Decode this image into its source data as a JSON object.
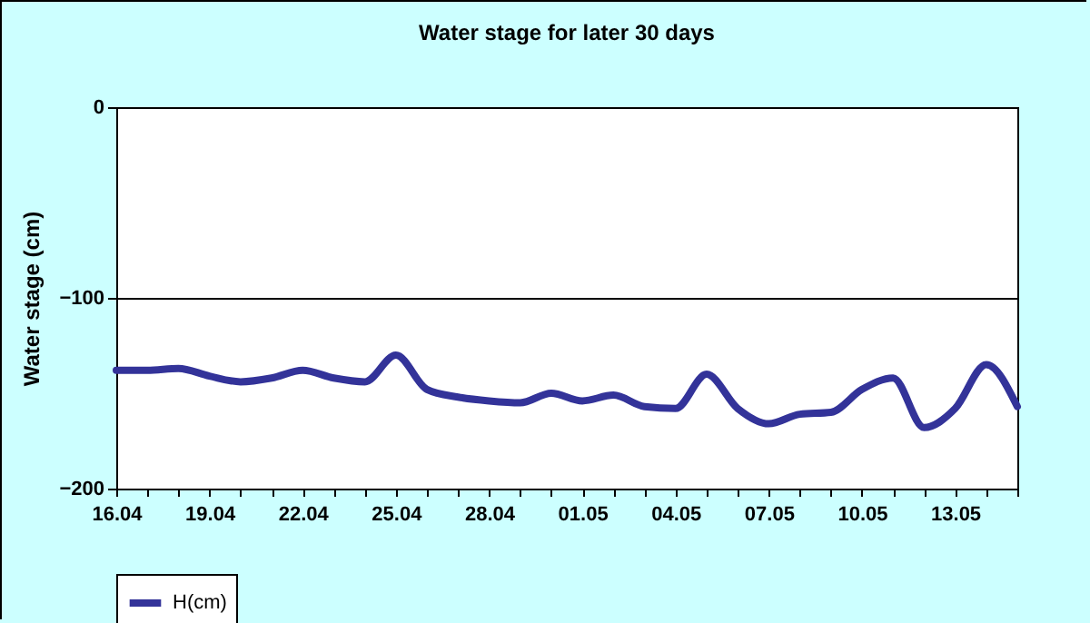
{
  "chart_data": {
    "type": "line",
    "title": "Water stage for later 30 days",
    "ylabel": "Water stage (cm)",
    "categories": [
      "16.04",
      null,
      null,
      "19.04",
      null,
      null,
      "22.04",
      null,
      null,
      "25.04",
      null,
      null,
      "28.04",
      null,
      null,
      "01.05",
      null,
      null,
      "04.05",
      null,
      null,
      "07.05",
      null,
      null,
      "10.05",
      null,
      null,
      "13.05",
      null,
      null
    ],
    "series": [
      {
        "name": "H(cm)",
        "color": "#333399",
        "values": [
          -138,
          -138,
          -137,
          -141,
          -144,
          -142,
          -138,
          -142,
          -144,
          -130,
          -148,
          -152,
          -154,
          -155,
          -150,
          -154,
          -151,
          -157,
          -158,
          -140,
          -158,
          -166,
          -161,
          -160,
          -148,
          -142,
          -168,
          -158,
          -135,
          -157
        ]
      }
    ],
    "ylim": [
      -200,
      0
    ],
    "yticks": [
      -200,
      -100,
      0
    ],
    "grid": "y",
    "legend": "bottom",
    "marker": "none",
    "line_style": "solid"
  }
}
